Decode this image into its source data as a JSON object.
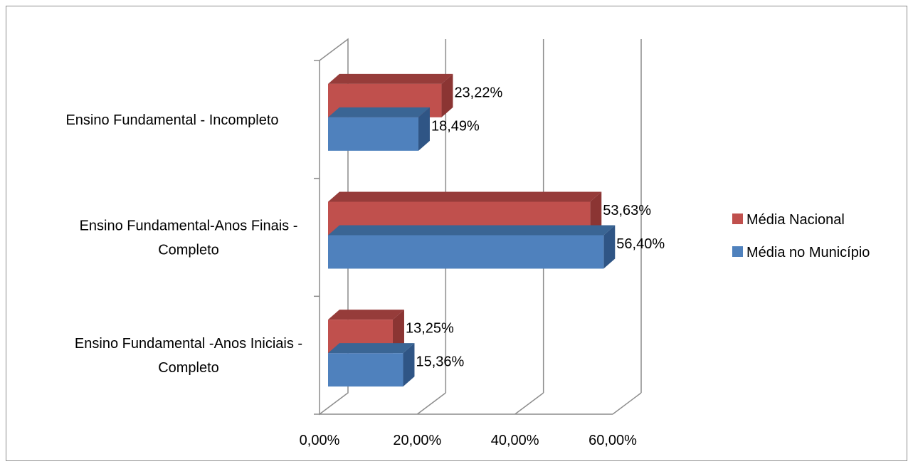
{
  "chart_data": {
    "type": "bar",
    "orientation": "horizontal",
    "three_d": true,
    "categories": [
      [
        "Ensino Fundamental - Incompleto"
      ],
      [
        "Ensino Fundamental-Anos Finais -",
        "Completo"
      ],
      [
        "Ensino Fundamental -Anos Iniciais -",
        "Completo"
      ]
    ],
    "series": [
      {
        "name": "Média Nacional",
        "color": "#c0504d",
        "top_color": "#963c3a",
        "side_color": "#8b3533",
        "values": [
          23.22,
          53.63,
          13.25
        ],
        "labels": [
          "23,22%",
          "53,63%",
          "13,25%"
        ]
      },
      {
        "name": "Média no Município",
        "color": "#4f81bd",
        "top_color": "#3a6594",
        "side_color": "#2f5585",
        "values": [
          18.49,
          56.4,
          15.36
        ],
        "labels": [
          "18,49%",
          "56,40%",
          "15,36%"
        ]
      }
    ],
    "x_ticks": [
      {
        "value": 0,
        "label": "0,00%"
      },
      {
        "value": 20,
        "label": "20,00%"
      },
      {
        "value": 40,
        "label": "40,00%"
      },
      {
        "value": 60,
        "label": "60,00%"
      }
    ],
    "xlim": [
      0,
      60
    ],
    "grid": true,
    "legend_position": "right"
  }
}
